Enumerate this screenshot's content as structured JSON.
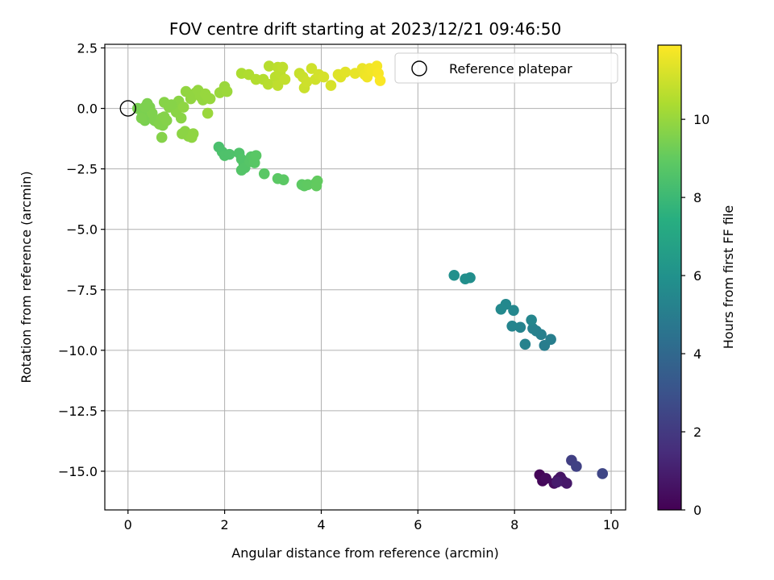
{
  "chart_data": {
    "type": "scatter",
    "title": "FOV centre drift starting at 2023/12/21 09:46:50",
    "xlabel": "Angular distance from reference (arcmin)",
    "ylabel": "Rotation from reference (arcmin)",
    "xlim": [
      -0.48,
      10.3
    ],
    "ylim": [
      -16.6,
      2.65
    ],
    "xticks": [
      0,
      2,
      4,
      6,
      8,
      10
    ],
    "xtick_labels": [
      "0",
      "2",
      "4",
      "6",
      "8",
      "10"
    ],
    "yticks": [
      2.5,
      0.0,
      -2.5,
      -5.0,
      -7.5,
      -10.0,
      -12.5,
      -15.0
    ],
    "ytick_labels": [
      "2.5",
      "0.0",
      "−2.5",
      "−5.0",
      "−7.5",
      "−10.0",
      "−12.5",
      "−15.0"
    ],
    "grid": true,
    "legend": {
      "label": "Reference platepar",
      "location": "upper right"
    },
    "reference_point": {
      "x": 0.0,
      "y": 0.0
    },
    "colorbar": {
      "label": "Hours from first FF file",
      "colormap": "viridis",
      "range": [
        0,
        11.9
      ],
      "ticks": [
        0,
        2,
        4,
        6,
        8,
        10
      ],
      "tick_labels": [
        "0",
        "2",
        "4",
        "6",
        "8",
        "10"
      ]
    },
    "points": [
      {
        "x": 8.52,
        "y": -15.15,
        "t": 0.1
      },
      {
        "x": 8.58,
        "y": -15.4,
        "t": 0.2
      },
      {
        "x": 8.65,
        "y": -15.3,
        "t": 0.3
      },
      {
        "x": 8.82,
        "y": -15.5,
        "t": 0.4
      },
      {
        "x": 8.9,
        "y": -15.35,
        "t": 0.5
      },
      {
        "x": 8.95,
        "y": -15.25,
        "t": 0.6
      },
      {
        "x": 9.0,
        "y": -15.4,
        "t": 0.7
      },
      {
        "x": 9.08,
        "y": -15.5,
        "t": 0.8
      },
      {
        "x": 8.88,
        "y": -15.45,
        "t": 0.9
      },
      {
        "x": 9.18,
        "y": -14.55,
        "t": 2.2
      },
      {
        "x": 9.28,
        "y": -14.8,
        "t": 2.3
      },
      {
        "x": 9.82,
        "y": -15.1,
        "t": 2.5
      },
      {
        "x": 8.62,
        "y": -9.8,
        "t": 5.0
      },
      {
        "x": 8.75,
        "y": -9.55,
        "t": 5.05
      },
      {
        "x": 8.55,
        "y": -9.35,
        "t": 5.1
      },
      {
        "x": 8.45,
        "y": -9.2,
        "t": 5.15
      },
      {
        "x": 8.38,
        "y": -9.1,
        "t": 5.2
      },
      {
        "x": 8.22,
        "y": -9.75,
        "t": 5.25
      },
      {
        "x": 8.12,
        "y": -9.05,
        "t": 5.3
      },
      {
        "x": 7.95,
        "y": -9.0,
        "t": 5.35
      },
      {
        "x": 8.35,
        "y": -8.75,
        "t": 5.4
      },
      {
        "x": 7.98,
        "y": -8.35,
        "t": 5.45
      },
      {
        "x": 7.82,
        "y": -8.1,
        "t": 5.5
      },
      {
        "x": 7.72,
        "y": -8.3,
        "t": 5.55
      },
      {
        "x": 7.08,
        "y": -7.0,
        "t": 5.8
      },
      {
        "x": 6.98,
        "y": -7.05,
        "t": 5.85
      },
      {
        "x": 6.75,
        "y": -6.9,
        "t": 5.9
      },
      {
        "x": 1.88,
        "y": -1.6,
        "t": 8.4
      },
      {
        "x": 1.95,
        "y": -1.8,
        "t": 8.45
      },
      {
        "x": 2.0,
        "y": -1.95,
        "t": 8.5
      },
      {
        "x": 2.1,
        "y": -1.9,
        "t": 8.5
      },
      {
        "x": 2.3,
        "y": -1.85,
        "t": 8.55
      },
      {
        "x": 2.35,
        "y": -2.1,
        "t": 8.6
      },
      {
        "x": 2.4,
        "y": -2.3,
        "t": 8.6
      },
      {
        "x": 2.35,
        "y": -2.55,
        "t": 8.65
      },
      {
        "x": 2.42,
        "y": -2.45,
        "t": 8.65
      },
      {
        "x": 2.52,
        "y": -2.2,
        "t": 8.7
      },
      {
        "x": 2.55,
        "y": -2.0,
        "t": 8.7
      },
      {
        "x": 2.6,
        "y": -2.05,
        "t": 8.75
      },
      {
        "x": 2.62,
        "y": -2.25,
        "t": 8.75
      },
      {
        "x": 2.65,
        "y": -1.95,
        "t": 8.8
      },
      {
        "x": 2.82,
        "y": -2.7,
        "t": 8.8
      },
      {
        "x": 3.1,
        "y": -2.9,
        "t": 8.85
      },
      {
        "x": 3.22,
        "y": -2.95,
        "t": 8.85
      },
      {
        "x": 3.6,
        "y": -3.15,
        "t": 8.9
      },
      {
        "x": 3.65,
        "y": -3.2,
        "t": 8.9
      },
      {
        "x": 3.72,
        "y": -3.15,
        "t": 8.95
      },
      {
        "x": 3.88,
        "y": -3.1,
        "t": 8.95
      },
      {
        "x": 3.92,
        "y": -3.0,
        "t": 9.0
      },
      {
        "x": 3.9,
        "y": -3.2,
        "t": 9.0
      },
      {
        "x": 0.2,
        "y": 0.0,
        "t": 9.4
      },
      {
        "x": 0.3,
        "y": -0.3,
        "t": 9.45
      },
      {
        "x": 0.35,
        "y": -0.5,
        "t": 9.45
      },
      {
        "x": 0.28,
        "y": -0.4,
        "t": 9.5
      },
      {
        "x": 0.4,
        "y": 0.2,
        "t": 9.5
      },
      {
        "x": 0.45,
        "y": 0.05,
        "t": 9.5
      },
      {
        "x": 0.5,
        "y": -0.2,
        "t": 9.55
      },
      {
        "x": 0.55,
        "y": -0.5,
        "t": 9.55
      },
      {
        "x": 0.6,
        "y": -0.55,
        "t": 9.55
      },
      {
        "x": 0.65,
        "y": -0.65,
        "t": 9.6
      },
      {
        "x": 0.7,
        "y": -0.4,
        "t": 9.6
      },
      {
        "x": 0.72,
        "y": -0.7,
        "t": 9.6
      },
      {
        "x": 0.75,
        "y": -0.35,
        "t": 9.65
      },
      {
        "x": 0.8,
        "y": -0.5,
        "t": 9.65
      },
      {
        "x": 0.7,
        "y": -1.2,
        "t": 9.65
      },
      {
        "x": 0.75,
        "y": 0.25,
        "t": 9.7
      },
      {
        "x": 0.85,
        "y": 0.05,
        "t": 9.7
      },
      {
        "x": 0.95,
        "y": 0.1,
        "t": 9.7
      },
      {
        "x": 1.0,
        "y": -0.15,
        "t": 9.75
      },
      {
        "x": 1.05,
        "y": 0.3,
        "t": 9.75
      },
      {
        "x": 1.1,
        "y": -0.4,
        "t": 9.75
      },
      {
        "x": 1.12,
        "y": -1.05,
        "t": 9.8
      },
      {
        "x": 1.18,
        "y": -0.95,
        "t": 9.8
      },
      {
        "x": 1.25,
        "y": -1.15,
        "t": 9.8
      },
      {
        "x": 1.35,
        "y": -1.05,
        "t": 9.85
      },
      {
        "x": 1.32,
        "y": -1.2,
        "t": 9.85
      },
      {
        "x": 1.15,
        "y": 0.05,
        "t": 9.85
      },
      {
        "x": 1.2,
        "y": 0.7,
        "t": 9.9
      },
      {
        "x": 1.3,
        "y": 0.4,
        "t": 9.9
      },
      {
        "x": 1.4,
        "y": 0.65,
        "t": 9.9
      },
      {
        "x": 1.45,
        "y": 0.75,
        "t": 9.95
      },
      {
        "x": 1.5,
        "y": 0.5,
        "t": 9.95
      },
      {
        "x": 1.55,
        "y": 0.35,
        "t": 9.95
      },
      {
        "x": 1.6,
        "y": 0.6,
        "t": 10.0
      },
      {
        "x": 1.65,
        "y": 0.45,
        "t": 10.0
      },
      {
        "x": 1.7,
        "y": 0.4,
        "t": 10.0
      },
      {
        "x": 1.65,
        "y": -0.2,
        "t": 10.05
      },
      {
        "x": 1.9,
        "y": 0.65,
        "t": 10.05
      },
      {
        "x": 2.0,
        "y": 0.9,
        "t": 10.05
      },
      {
        "x": 2.05,
        "y": 0.7,
        "t": 10.1
      },
      {
        "x": 0.35,
        "y": 0.05,
        "t": 9.5
      },
      {
        "x": 0.9,
        "y": 0.15,
        "t": 9.7
      },
      {
        "x": 2.35,
        "y": 1.45,
        "t": 10.4
      },
      {
        "x": 2.5,
        "y": 1.4,
        "t": 10.45
      },
      {
        "x": 2.65,
        "y": 1.2,
        "t": 10.5
      },
      {
        "x": 2.8,
        "y": 1.2,
        "t": 10.55
      },
      {
        "x": 2.9,
        "y": 1.0,
        "t": 10.6
      },
      {
        "x": 2.92,
        "y": 1.75,
        "t": 10.6
      },
      {
        "x": 3.05,
        "y": 1.3,
        "t": 10.65
      },
      {
        "x": 3.1,
        "y": 1.7,
        "t": 10.7
      },
      {
        "x": 3.15,
        "y": 1.45,
        "t": 10.7
      },
      {
        "x": 3.1,
        "y": 0.95,
        "t": 10.75
      },
      {
        "x": 3.2,
        "y": 1.7,
        "t": 10.75
      },
      {
        "x": 3.25,
        "y": 1.2,
        "t": 10.8
      },
      {
        "x": 3.55,
        "y": 1.45,
        "t": 10.9
      },
      {
        "x": 3.62,
        "y": 1.3,
        "t": 10.95
      },
      {
        "x": 3.65,
        "y": 0.85,
        "t": 10.95
      },
      {
        "x": 3.7,
        "y": 1.1,
        "t": 11.0
      },
      {
        "x": 3.8,
        "y": 1.65,
        "t": 11.05
      },
      {
        "x": 3.88,
        "y": 1.2,
        "t": 11.05
      },
      {
        "x": 3.95,
        "y": 1.4,
        "t": 11.1
      },
      {
        "x": 4.05,
        "y": 1.3,
        "t": 11.15
      },
      {
        "x": 4.2,
        "y": 0.95,
        "t": 11.2
      },
      {
        "x": 4.35,
        "y": 1.4,
        "t": 11.3
      },
      {
        "x": 4.4,
        "y": 1.3,
        "t": 11.35
      },
      {
        "x": 4.5,
        "y": 1.5,
        "t": 11.4
      },
      {
        "x": 4.7,
        "y": 1.45,
        "t": 11.5
      },
      {
        "x": 4.85,
        "y": 1.65,
        "t": 11.55
      },
      {
        "x": 4.9,
        "y": 1.4,
        "t": 11.6
      },
      {
        "x": 5.0,
        "y": 1.65,
        "t": 11.65
      },
      {
        "x": 4.95,
        "y": 1.3,
        "t": 11.65
      },
      {
        "x": 5.05,
        "y": 1.55,
        "t": 11.7
      },
      {
        "x": 5.15,
        "y": 1.75,
        "t": 11.75
      },
      {
        "x": 5.18,
        "y": 1.45,
        "t": 11.8
      },
      {
        "x": 5.22,
        "y": 1.15,
        "t": 11.85
      }
    ]
  }
}
